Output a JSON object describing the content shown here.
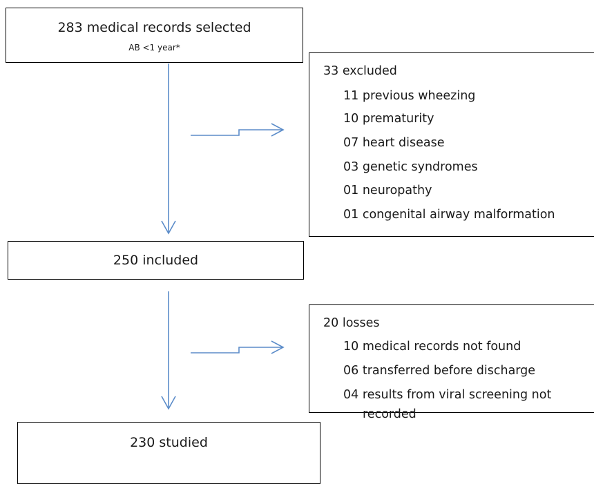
{
  "top_box": {
    "title": "283 medical records selected",
    "subtitle": "AB <1 year*"
  },
  "excluded_box": {
    "heading": "33 excluded",
    "items": [
      "11 previous wheezing",
      "10 prematurity",
      "07 heart disease",
      "03 genetic syndromes",
      "01 neuropathy",
      "01 congenital airway malformation"
    ]
  },
  "included_box": {
    "title": "250 included"
  },
  "losses_box": {
    "heading": "20 losses",
    "items": [
      "10 medical records not found",
      "06 transferred before discharge",
      "04 results from viral screening not",
      "recorded"
    ]
  },
  "studied_box": {
    "title": "230 studied"
  },
  "colors": {
    "arrow": "#5b8cc9",
    "border": "#000000"
  }
}
